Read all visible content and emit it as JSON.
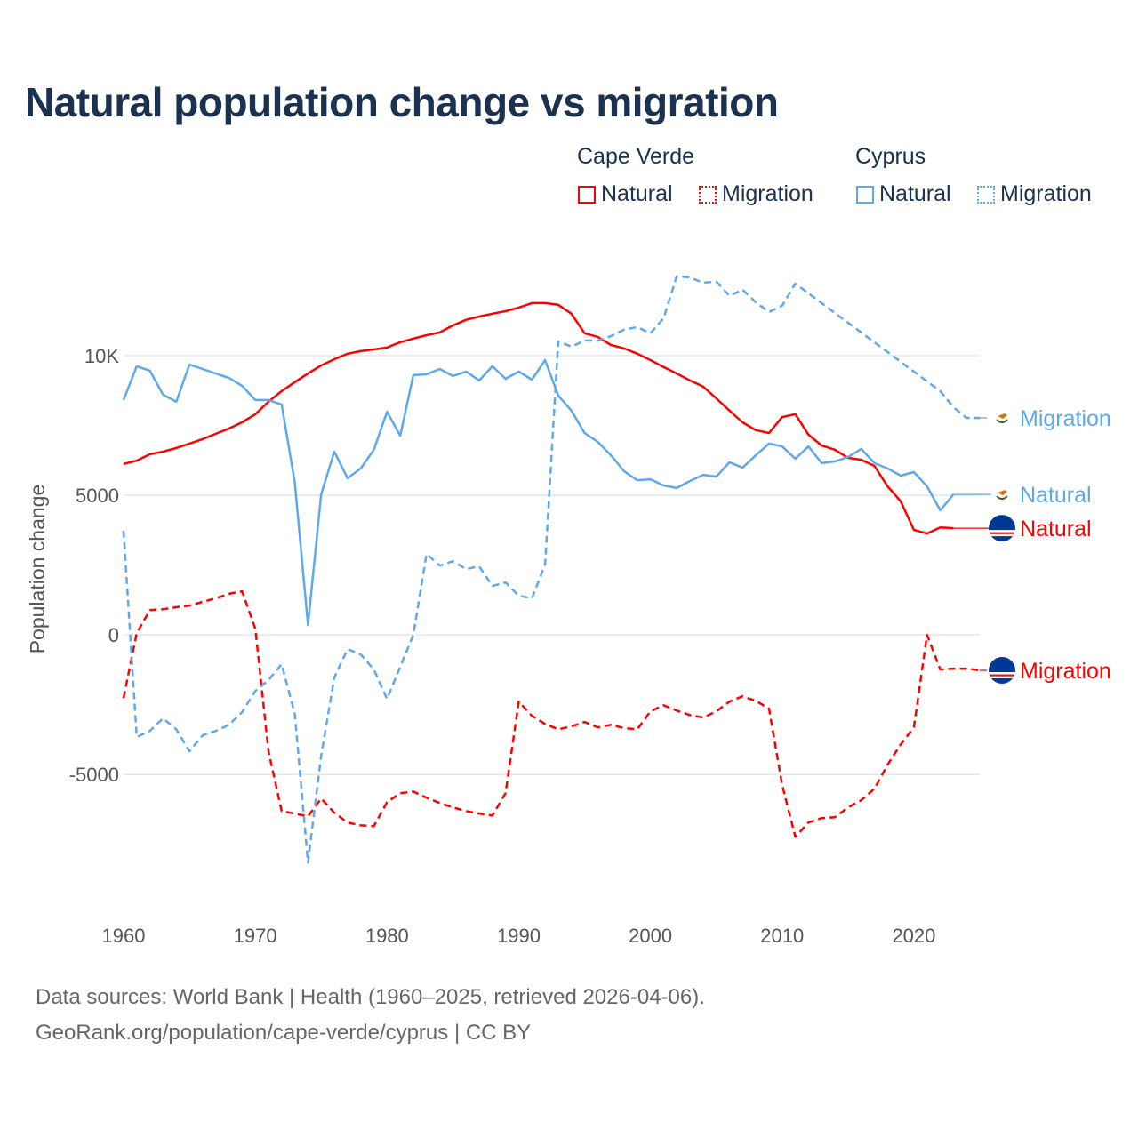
{
  "title": "Natural population change vs migration",
  "legend": {
    "groups": [
      {
        "name": "Cape Verde",
        "items": [
          "Natural",
          "Migration"
        ],
        "color": "#ff0000"
      },
      {
        "name": "Cyprus",
        "items": [
          "Natural",
          "Migration"
        ],
        "color": "#5fa8ec"
      }
    ]
  },
  "footer": {
    "line1": "Data sources: World Bank | Health (1960–2025, retrieved 2026-04-06).",
    "line2": "GeoRank.org/population/cape-verde/cyprus | CC BY"
  },
  "chart_data": {
    "type": "line",
    "title": "Natural population change vs migration",
    "xlabel": "",
    "ylabel": "Population change",
    "xlim": [
      1960,
      2025
    ],
    "ylim": [
      -9100,
      13500
    ],
    "x_ticks": [
      1960,
      1970,
      1980,
      1990,
      2000,
      2010,
      2020
    ],
    "y_ticks": [
      {
        "value": -5000,
        "label": "-5000"
      },
      {
        "value": 0,
        "label": "0"
      },
      {
        "value": 5000,
        "label": "5000"
      },
      {
        "value": 10000,
        "label": "10K"
      }
    ],
    "grid": true,
    "x_start": 1960,
    "series": [
      {
        "name": "Cape Verde Natural",
        "country": "Cape Verde",
        "label": "Natural",
        "color": "#ff0000",
        "dashed": false,
        "flag": "cape-verde",
        "values": [
          6120,
          6240,
          6470,
          6560,
          6690,
          6850,
          7010,
          7200,
          7390,
          7610,
          7900,
          8350,
          8730,
          9050,
          9360,
          9650,
          9870,
          10070,
          10160,
          10220,
          10290,
          10480,
          10610,
          10730,
          10830,
          11080,
          11280,
          11400,
          11500,
          11590,
          11720,
          11880,
          11880,
          11820,
          11500,
          10800,
          10670,
          10380,
          10260,
          10070,
          9840,
          9590,
          9360,
          9110,
          8890,
          8470,
          8030,
          7610,
          7330,
          7230,
          7800,
          7900,
          7170,
          6780,
          6630,
          6340,
          6270,
          6050,
          5320,
          4780,
          3760,
          3630,
          3850,
          3820
        ]
      },
      {
        "name": "Cape Verde Migration",
        "country": "Cape Verde",
        "label": "Migration",
        "color": "#ff0000",
        "dashed": true,
        "flag": "cape-verde",
        "values": [
          -2260,
          60,
          890,
          920,
          990,
          1050,
          1180,
          1310,
          1470,
          1560,
          220,
          -4170,
          -6310,
          -6400,
          -6500,
          -5860,
          -6370,
          -6720,
          -6820,
          -6850,
          -5990,
          -5670,
          -5610,
          -5830,
          -6020,
          -6180,
          -6310,
          -6400,
          -6470,
          -5670,
          -2390,
          -2900,
          -3190,
          -3380,
          -3280,
          -3120,
          -3310,
          -3220,
          -3340,
          -3380,
          -2740,
          -2520,
          -2710,
          -2870,
          -2960,
          -2740,
          -2390,
          -2200,
          -2360,
          -2640,
          -5380,
          -7230,
          -6720,
          -6560,
          -6530,
          -6180,
          -5920,
          -5510,
          -4650,
          -3920,
          -3310,
          0,
          -1240,
          -1210,
          -1210,
          -1270
        ]
      },
      {
        "name": "Cyprus Natural",
        "country": "Cyprus",
        "label": "Natural",
        "color": "#5fa8ec",
        "dashed": false,
        "flag": "cyprus",
        "values": [
          8410,
          9620,
          9460,
          8600,
          8350,
          9680,
          9520,
          9360,
          9200,
          8920,
          8410,
          8410,
          8250,
          5450,
          350,
          5030,
          6560,
          5610,
          5960,
          6630,
          7990,
          7130,
          9300,
          9330,
          9520,
          9270,
          9430,
          9110,
          9620,
          9170,
          9430,
          9140,
          9840,
          8570,
          8030,
          7230,
          6910,
          6430,
          5860,
          5540,
          5570,
          5350,
          5260,
          5510,
          5730,
          5670,
          6180,
          5990,
          6430,
          6850,
          6750,
          6310,
          6750,
          6150,
          6210,
          6370,
          6660,
          6150,
          5960,
          5700,
          5830,
          5320,
          4460,
          5030
        ]
      },
      {
        "name": "Cyprus Migration",
        "country": "Cyprus",
        "label": "Migration",
        "color": "#5fa8ec",
        "dashed": true,
        "flag": "cyprus",
        "values": [
          3730,
          -3660,
          -3440,
          -2990,
          -3380,
          -4170,
          -3600,
          -3440,
          -3220,
          -2770,
          -2010,
          -1620,
          -1050,
          -2840,
          -8150,
          -4330,
          -1530,
          -510,
          -700,
          -1240,
          -2290,
          -1150,
          0,
          2900,
          2480,
          2640,
          2360,
          2450,
          1750,
          1880,
          1400,
          1310,
          2520,
          10510,
          10320,
          10540,
          10540,
          10700,
          10930,
          11020,
          10800,
          11340,
          12840,
          12800,
          12610,
          12650,
          12140,
          12360,
          11910,
          11560,
          11790,
          12580,
          12230,
          11880,
          11530,
          11180,
          10830,
          10480,
          10130,
          9780,
          9430,
          9080,
          8730,
          8150,
          7770,
          7770
        ]
      }
    ]
  }
}
